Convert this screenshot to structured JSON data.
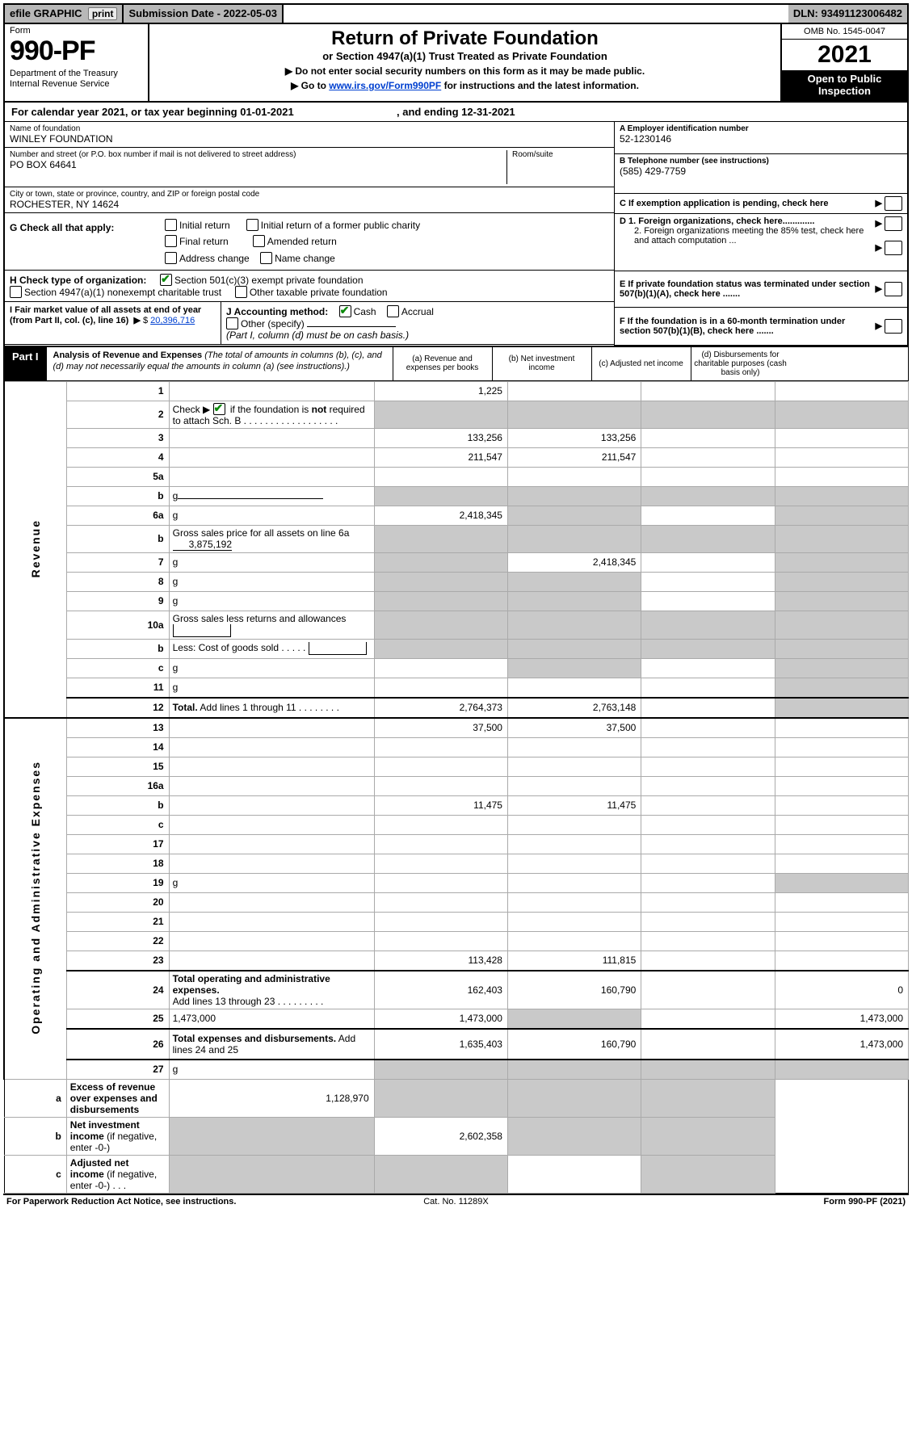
{
  "topbar": {
    "efile_label": "efile GRAPHIC",
    "print_btn": "print",
    "subdate": "Submission Date - 2022-05-03",
    "dln": "DLN: 93491123006482"
  },
  "header": {
    "form_word": "Form",
    "form_number": "990-PF",
    "dept_lines": "Department of the Treasury\nInternal Revenue Service",
    "title": "Return of Private Foundation",
    "subtitle": "or Section 4947(a)(1) Trust Treated as Private Foundation",
    "instr1": "▶ Do not enter social security numbers on this form as it may be made public.",
    "instr2": "▶ Go to www.irs.gov/Form990PF for instructions and the latest information.",
    "link_text": "www.irs.gov/Form990PF",
    "omb": "OMB No. 1545-0047",
    "year": "2021",
    "open": "Open to Public\nInspection"
  },
  "calendar": {
    "text_a": "For calendar year 2021, or tax year beginning 01-01-2021",
    "text_b": ", and ending 12-31-2021"
  },
  "ident": {
    "name_lbl": "Name of foundation",
    "name_val": "WINLEY FOUNDATION",
    "addr_lbl": "Number and street (or P.O. box number if mail is not delivered to street address)",
    "addr_val": "PO BOX 64641",
    "room_lbl": "Room/suite",
    "city_lbl": "City or town, state or province, country, and ZIP or foreign postal code",
    "city_val": "ROCHESTER, NY  14624",
    "a_lbl": "A Employer identification number",
    "a_val": "52-1230146",
    "b_lbl": "B Telephone number (see instructions)",
    "b_val": "(585) 429-7759",
    "c_lbl": "C If exemption application is pending, check here"
  },
  "checks": {
    "g_label": "G Check all that apply:",
    "g_opts": [
      "Initial return",
      "Initial return of a former public charity",
      "Final return",
      "Amended return",
      "Address change",
      "Name change"
    ],
    "h_label": "H Check type of organization:",
    "h1": "Section 501(c)(3) exempt private foundation",
    "h2": "Section 4947(a)(1) nonexempt charitable trust",
    "h3": "Other taxable private foundation",
    "i_label": "I Fair market value of all assets at end of year (from Part II, col. (c), line 16)",
    "i_val": "20,396,716",
    "j_label": "J Accounting method:",
    "j_cash": "Cash",
    "j_accrual": "Accrual",
    "j_other": "Other (specify)",
    "j_note": "(Part I, column (d) must be on cash basis.)",
    "d1": "D 1. Foreign organizations, check here.............",
    "d2": "2. Foreign organizations meeting the 85% test, check here and attach computation  ...",
    "e": "E  If private foundation status was terminated under section 507(b)(1)(A), check here .......",
    "f": "F  If the foundation is in a 60-month termination under section 507(b)(1)(B), check here .......",
    "dollar": "$"
  },
  "part1": {
    "label": "Part I",
    "title": "Analysis of Revenue and Expenses",
    "title_note": " (The total of amounts in columns (b), (c), and (d) may not necessarily equal the amounts in column (a) (see instructions).)",
    "cols": {
      "a": "(a)   Revenue and expenses per books",
      "b": "(b)   Net investment income",
      "c": "(c)  Adjusted net income",
      "d": "(d)  Disbursements for charitable purposes (cash basis only)"
    }
  },
  "rot": {
    "revenue": "Revenue",
    "expenses": "Operating and Administrative Expenses"
  },
  "rows": [
    {
      "n": "1",
      "d": "",
      "a": "1,225",
      "b": "",
      "c": ""
    },
    {
      "n": "2",
      "d_html": "Check ▶ [CB] if the foundation is <b>not</b> required to attach Sch. B  .  .  .  .  .  .  .  .  .  .  .  .  .  .  .  .  .  .",
      "a": "g",
      "b": "g",
      "c": "g",
      "d": "g"
    },
    {
      "n": "3",
      "d": "",
      "a": "133,256",
      "b": "133,256",
      "c": ""
    },
    {
      "n": "4",
      "d": "",
      "a": "211,547",
      "b": "211,547",
      "c": ""
    },
    {
      "n": "5a",
      "d": "",
      "a": "",
      "b": "",
      "c": ""
    },
    {
      "n": "b",
      "d": "g",
      "a": "g",
      "b": "g",
      "c": "g",
      "inline": true
    },
    {
      "n": "6a",
      "d": "g",
      "a": "2,418,345",
      "b": "g",
      "c": ""
    },
    {
      "n": "b",
      "d_html": "Gross sales price for all assets on line 6a <span class='underline'>&nbsp;&nbsp;&nbsp;&nbsp;&nbsp;&nbsp;3,875,192</span>",
      "a": "g",
      "b": "g",
      "c": "g",
      "d": "g"
    },
    {
      "n": "7",
      "d": "g",
      "a": "g",
      "b": "2,418,345",
      "c": ""
    },
    {
      "n": "8",
      "d": "g",
      "a": "g",
      "b": "g",
      "c": ""
    },
    {
      "n": "9",
      "d": "g",
      "a": "g",
      "b": "g",
      "c": ""
    },
    {
      "n": "10a",
      "d_html": "Gross sales less returns and allowances <span style='display:inline-block;border:1px solid #000;border-top:none;width:70px;height:15px;vertical-align:middle'></span>",
      "a": "g",
      "b": "g",
      "c": "g",
      "d": "g"
    },
    {
      "n": "b",
      "d_html": "Less: Cost of goods sold   .   .   .   .   . <span style='display:inline-block;border:1px solid #000;border-top:none;width:70px;height:15px;vertical-align:middle'></span>",
      "a": "g",
      "b": "g",
      "c": "g",
      "d": "g"
    },
    {
      "n": "c",
      "d": "g",
      "a": "",
      "b": "g",
      "c": ""
    },
    {
      "n": "11",
      "d": "g",
      "a": "",
      "b": "",
      "c": ""
    },
    {
      "n": "12",
      "d_html": "<b>Total.</b> Add lines 1 through 11   .   .   .   .   .   .   .   .",
      "a": "2,764,373",
      "b": "2,763,148",
      "c": "",
      "d": "g",
      "sep": true
    },
    {
      "n": "13",
      "d": "",
      "a": "37,500",
      "b": "37,500",
      "c": "",
      "sep": true
    },
    {
      "n": "14",
      "d": "",
      "a": "",
      "b": "",
      "c": ""
    },
    {
      "n": "15",
      "d": "",
      "a": "",
      "b": "",
      "c": ""
    },
    {
      "n": "16a",
      "d": "",
      "a": "",
      "b": "",
      "c": ""
    },
    {
      "n": "b",
      "d": "",
      "a": "11,475",
      "b": "11,475",
      "c": ""
    },
    {
      "n": "c",
      "d": "",
      "a": "",
      "b": "",
      "c": ""
    },
    {
      "n": "17",
      "d": "",
      "a": "",
      "b": "",
      "c": ""
    },
    {
      "n": "18",
      "d": "",
      "a": "",
      "b": "",
      "c": ""
    },
    {
      "n": "19",
      "d": "g",
      "a": "",
      "b": "",
      "c": ""
    },
    {
      "n": "20",
      "d": "",
      "a": "",
      "b": "",
      "c": ""
    },
    {
      "n": "21",
      "d": "",
      "a": "",
      "b": "",
      "c": ""
    },
    {
      "n": "22",
      "d": "",
      "a": "",
      "b": "",
      "c": ""
    },
    {
      "n": "23",
      "d": "",
      "a": "113,428",
      "b": "111,815",
      "c": ""
    },
    {
      "n": "24",
      "d_html": "<b>Total operating and administrative expenses.</b><br>Add lines 13 through 23   .   .   .   .   .   .   .   .   .",
      "a": "162,403",
      "b": "160,790",
      "c": "",
      "d": "0",
      "sep": true,
      "tall": true
    },
    {
      "n": "25",
      "d": "1,473,000",
      "a": "1,473,000",
      "b": "g",
      "c": ""
    },
    {
      "n": "26",
      "d_html": "<b>Total expenses and disbursements.</b> Add lines 24 and 25",
      "a": "1,635,403",
      "b": "160,790",
      "c": "",
      "d": "1,473,000",
      "sep": true,
      "tall": true
    },
    {
      "n": "27",
      "d": "g",
      "a": "g",
      "b": "g",
      "c": "g",
      "sep": true
    },
    {
      "n": "a",
      "d_html": "<b>Excess of revenue over expenses and disbursements</b>",
      "a": "1,128,970",
      "b": "g",
      "c": "g",
      "d": "g",
      "tall": true
    },
    {
      "n": "b",
      "d_html": "<b>Net investment income</b> (if negative, enter -0-)",
      "a": "g",
      "b": "2,602,358",
      "c": "g",
      "d": "g"
    },
    {
      "n": "c",
      "d_html": "<b>Adjusted net income</b> (if negative, enter -0-)   .   .   .",
      "a": "g",
      "b": "g",
      "c": "",
      "d": "g"
    }
  ],
  "footer": {
    "l": "For Paperwork Reduction Act Notice, see instructions.",
    "c": "Cat. No. 11289X",
    "r": "Form 990-PF (2021)"
  },
  "style": {
    "grey": "#c9c9c9",
    "width_num": 26,
    "width_val": 112
  }
}
